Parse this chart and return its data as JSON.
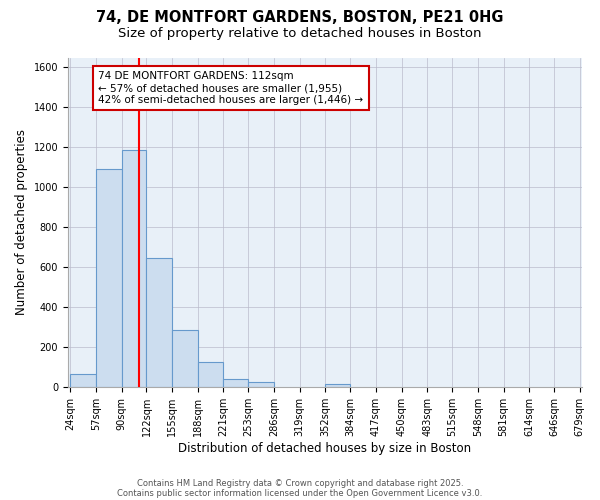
{
  "title_line1": "74, DE MONTFORT GARDENS, BOSTON, PE21 0HG",
  "title_line2": "Size of property relative to detached houses in Boston",
  "xlabel": "Distribution of detached houses by size in Boston",
  "ylabel": "Number of detached properties",
  "bar_color": "#ccddef",
  "bar_edge_color": "#6699cc",
  "background_color": "#e8f0f8",
  "grid_color": "#bbbbcc",
  "bin_edges": [
    24,
    57,
    90,
    122,
    155,
    188,
    221,
    253,
    286,
    319,
    352,
    384,
    417,
    450,
    483,
    515,
    548,
    581,
    614,
    646,
    679
  ],
  "bar_heights": [
    65,
    1090,
    1185,
    645,
    285,
    125,
    40,
    25,
    0,
    0,
    15,
    0,
    0,
    0,
    0,
    0,
    0,
    0,
    0,
    0
  ],
  "red_line_x": 112,
  "ylim": [
    0,
    1650
  ],
  "yticks": [
    0,
    200,
    400,
    600,
    800,
    1000,
    1200,
    1400,
    1600
  ],
  "annotation_text": "74 DE MONTFORT GARDENS: 112sqm\n← 57% of detached houses are smaller (1,955)\n42% of semi-detached houses are larger (1,446) →",
  "annotation_box_color": "#ffffff",
  "annotation_box_edge": "#cc0000",
  "footnote1": "Contains HM Land Registry data © Crown copyright and database right 2025.",
  "footnote2": "Contains public sector information licensed under the Open Government Licence v3.0.",
  "title_fontsize": 10.5,
  "subtitle_fontsize": 9.5,
  "tick_fontsize": 7,
  "ylabel_fontsize": 8.5,
  "xlabel_fontsize": 8.5,
  "annotation_fontsize": 7.5,
  "footnote_fontsize": 6
}
